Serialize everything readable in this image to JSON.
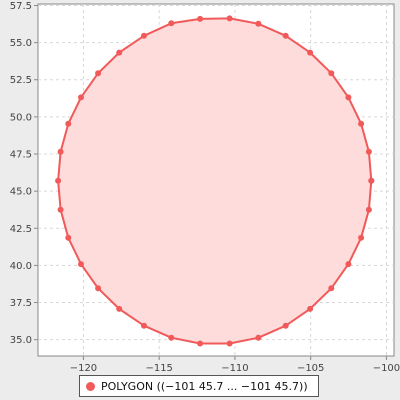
{
  "chart_data": {
    "type": "area",
    "title": "",
    "xlabel": "",
    "ylabel": "",
    "xlim": [
      -123,
      -99.5
    ],
    "ylim": [
      33.9,
      57.6
    ],
    "grid": true,
    "legend_position": "bottom-center",
    "x_ticks": [
      -120,
      -115,
      -110,
      -105,
      -100
    ],
    "x_tick_labels": [
      "−120",
      "−115",
      "−110",
      "−105",
      "−100"
    ],
    "y_ticks": [
      35.0,
      37.5,
      40.0,
      42.5,
      45.0,
      47.5,
      50.0,
      52.5,
      55.0,
      57.5
    ],
    "y_tick_labels": [
      "35.0",
      "37.5",
      "40.0",
      "42.5",
      "45.0",
      "47.5",
      "50.0",
      "52.5",
      "55.0",
      "57.5"
    ],
    "series": [
      {
        "name": "POLYGON ((−101 45.7 ...  −101 45.7))",
        "points": [
          [
            -101.0,
            45.7
          ],
          [
            -101.16,
            47.65
          ],
          [
            -101.67,
            49.54
          ],
          [
            -102.51,
            51.31
          ],
          [
            -103.64,
            52.94
          ],
          [
            -105.04,
            54.33
          ],
          [
            -106.65,
            55.46
          ],
          [
            -108.45,
            56.27
          ],
          [
            -110.35,
            56.63
          ],
          [
            -112.3,
            56.6
          ],
          [
            -114.2,
            56.3
          ],
          [
            -116.0,
            55.46
          ],
          [
            -117.64,
            54.33
          ],
          [
            -119.03,
            52.94
          ],
          [
            -120.16,
            51.31
          ],
          [
            -121.0,
            49.54
          ],
          [
            -121.51,
            47.65
          ],
          [
            -121.67,
            45.7
          ],
          [
            -121.51,
            43.75
          ],
          [
            -121.0,
            41.86
          ],
          [
            -120.16,
            40.09
          ],
          [
            -119.03,
            38.46
          ],
          [
            -117.64,
            37.07
          ],
          [
            -116.0,
            35.94
          ],
          [
            -114.2,
            35.13
          ],
          [
            -112.3,
            34.74
          ],
          [
            -110.35,
            34.74
          ],
          [
            -108.45,
            35.13
          ],
          [
            -106.65,
            35.94
          ],
          [
            -105.04,
            37.07
          ],
          [
            -103.64,
            38.46
          ],
          [
            -102.51,
            40.09
          ],
          [
            -101.67,
            41.86
          ],
          [
            -101.16,
            43.75
          ],
          [
            -101.0,
            45.7
          ]
        ]
      }
    ]
  },
  "colors": {
    "fill": "#ffdcdc",
    "stroke": "#f05a5a",
    "marker": "#f05a5a",
    "grid": "#d8d8d8",
    "axis": "#888888",
    "plot_background": "#ffffff"
  },
  "legend": {
    "label": "POLYGON ((−101 45.7 ...  −101 45.7))"
  }
}
